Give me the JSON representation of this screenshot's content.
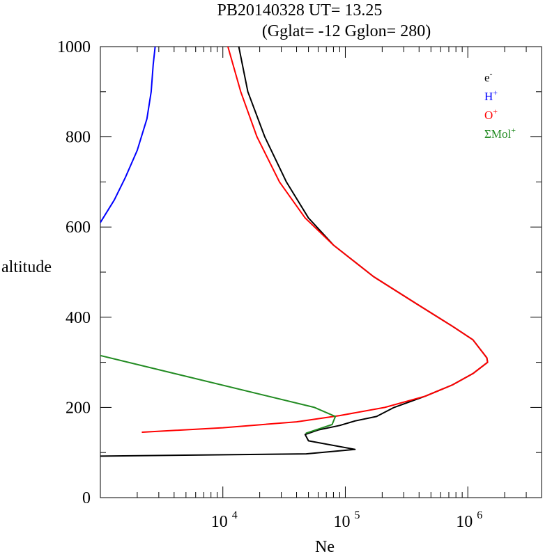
{
  "chart_data": {
    "type": "line",
    "title_line1": "PB20140328   UT=  13.25",
    "title_line2": "(Gglat= -12   Gglon=  280)",
    "xlabel": "Ne",
    "ylabel": "altitude",
    "x_scale": "log",
    "xlim": [
      1000,
      4000000
    ],
    "ylim": [
      0,
      1000
    ],
    "x_tick_labels": [
      {
        "value": 10000,
        "base": "10",
        "exp": "4"
      },
      {
        "value": 100000,
        "base": "10",
        "exp": "5"
      },
      {
        "value": 1000000,
        "base": "10",
        "exp": "6"
      }
    ],
    "y_ticks": [
      0,
      200,
      400,
      600,
      800,
      1000
    ],
    "y_tick_labels": [
      "0",
      "200",
      "400",
      "600",
      "800",
      "1000"
    ],
    "grid": false,
    "legend_position": "top-right",
    "series": [
      {
        "name": "e",
        "sup": "-",
        "color": "#000000",
        "points": [
          [
            1000,
            92
          ],
          [
            48000,
            97
          ],
          [
            120000,
            107
          ],
          [
            50000,
            126
          ],
          [
            47000,
            140
          ],
          [
            60000,
            150
          ],
          [
            90000,
            160
          ],
          [
            120000,
            170
          ],
          [
            180000,
            180
          ],
          [
            250000,
            200
          ],
          [
            450000,
            225
          ],
          [
            750000,
            250
          ],
          [
            1100000,
            275
          ],
          [
            1450000,
            300
          ],
          [
            1430000,
            310
          ],
          [
            1100000,
            350
          ],
          [
            750000,
            380
          ],
          [
            380000,
            430
          ],
          [
            170000,
            490
          ],
          [
            80000,
            560
          ],
          [
            50000,
            620
          ],
          [
            33000,
            700
          ],
          [
            22000,
            800
          ],
          [
            16000,
            900
          ],
          [
            13500,
            1000
          ]
        ]
      },
      {
        "name": "H",
        "sup": "+",
        "color": "#0000ff",
        "points": [
          [
            1000,
            610
          ],
          [
            1300,
            660
          ],
          [
            1600,
            710
          ],
          [
            2000,
            770
          ],
          [
            2400,
            840
          ],
          [
            2600,
            900
          ],
          [
            2700,
            960
          ],
          [
            2800,
            1000
          ]
        ]
      },
      {
        "name": "O",
        "sup": "+",
        "color": "#ff0000",
        "points": [
          [
            2200,
            145
          ],
          [
            10000,
            155
          ],
          [
            40000,
            168
          ],
          [
            90000,
            182
          ],
          [
            210000,
            200
          ],
          [
            450000,
            225
          ],
          [
            750000,
            250
          ],
          [
            1100000,
            275
          ],
          [
            1450000,
            300
          ],
          [
            1430000,
            310
          ],
          [
            1100000,
            350
          ],
          [
            750000,
            380
          ],
          [
            380000,
            430
          ],
          [
            170000,
            490
          ],
          [
            80000,
            560
          ],
          [
            47000,
            620
          ],
          [
            29000,
            700
          ],
          [
            19000,
            800
          ],
          [
            14000,
            900
          ],
          [
            11000,
            1000
          ]
        ]
      },
      {
        "name": "ΣMol",
        "sup": "+",
        "color": "#228b22",
        "points": [
          [
            1000,
            315
          ],
          [
            56000,
            200
          ],
          [
            83000,
            180
          ],
          [
            78000,
            162
          ],
          [
            48000,
            143
          ]
        ]
      }
    ]
  }
}
